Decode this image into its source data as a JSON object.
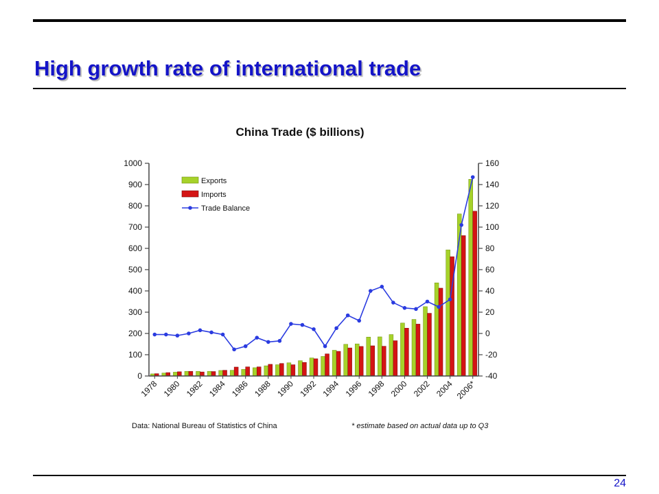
{
  "slide": {
    "title": "High growth rate of international trade",
    "page_number": "24"
  },
  "colors": {
    "title": "#1414c8",
    "exports": "#a6d22a",
    "imports": "#d41414",
    "trade_balance": "#2a3be0"
  },
  "chart_data": {
    "type": "bar",
    "title": "China Trade ($ billions)",
    "xlabel": "",
    "ylabel": "",
    "ylim": [
      0,
      1000
    ],
    "y_ticks": [
      0,
      100,
      200,
      300,
      400,
      500,
      600,
      700,
      800,
      900,
      1000
    ],
    "y2lim": [
      -40,
      160
    ],
    "y2_ticks": [
      -40,
      -20,
      0,
      20,
      40,
      60,
      80,
      100,
      120,
      140,
      160
    ],
    "categories": [
      "1978",
      "1979",
      "1980",
      "1981",
      "1982",
      "1983",
      "1984",
      "1985",
      "1986",
      "1987",
      "1988",
      "1989",
      "1990",
      "1991",
      "1992",
      "1993",
      "1994",
      "1995",
      "1996",
      "1997",
      "1998",
      "1999",
      "2000",
      "2001",
      "2002",
      "2003",
      "2004",
      "2005",
      "2006"
    ],
    "x_tick_labels": [
      "1978",
      "1980",
      "1982",
      "1984",
      "1986",
      "1988",
      "1990",
      "1992",
      "1994",
      "1996",
      "1998",
      "2000",
      "2002",
      "2004",
      "2006*"
    ],
    "series": [
      {
        "name": "Exports",
        "kind": "bar",
        "axis": "left",
        "values": [
          10,
          14,
          18,
          22,
          22,
          22,
          26,
          27,
          31,
          39,
          48,
          53,
          62,
          72,
          85,
          92,
          121,
          149,
          151,
          183,
          184,
          195,
          249,
          266,
          326,
          438,
          593,
          762,
          925
        ]
      },
      {
        "name": "Imports",
        "kind": "bar",
        "axis": "left",
        "values": [
          11,
          16,
          20,
          22,
          19,
          21,
          27,
          42,
          43,
          43,
          55,
          59,
          53,
          64,
          81,
          104,
          116,
          132,
          139,
          142,
          140,
          166,
          225,
          244,
          295,
          413,
          561,
          660,
          775
        ]
      },
      {
        "name": "Trade Balance",
        "kind": "line",
        "axis": "right",
        "values": [
          -1,
          -1,
          -2,
          0,
          3,
          1,
          -1,
          -15,
          -12,
          -4,
          -8,
          -7,
          9,
          8,
          4,
          -12,
          5,
          17,
          12,
          40,
          44,
          29,
          24,
          23,
          30,
          25,
          32,
          102,
          147
        ]
      }
    ],
    "legend": {
      "placement": "top-left",
      "entries": [
        "Exports",
        "Imports",
        "Trade Balance"
      ]
    },
    "grid": false,
    "source_note": "Data: National Bureau of Statistics of China",
    "footnote": "* estimate based on actual data up to Q3"
  }
}
